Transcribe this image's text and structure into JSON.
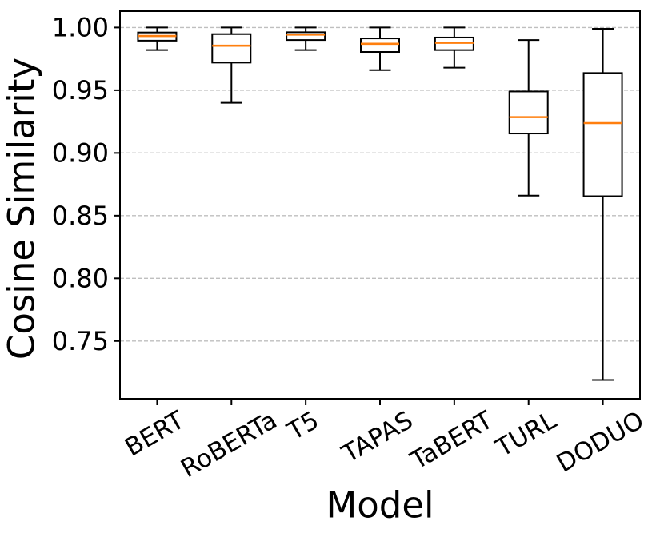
{
  "chart_data": {
    "type": "boxplot",
    "title": "",
    "xlabel": "Model",
    "ylabel": "Cosine Similarity",
    "categories": [
      "BERT",
      "RoBERTa",
      "T5",
      "TAPAS",
      "TaBERT",
      "TURL",
      "DODUO"
    ],
    "boxes": [
      {
        "label": "BERT",
        "whisker_low": 0.982,
        "q1": 0.9895,
        "median": 0.9932,
        "q3": 0.996,
        "whisker_high": 1.0
      },
      {
        "label": "RoBERTa",
        "whisker_low": 0.94,
        "q1": 0.972,
        "median": 0.9855,
        "q3": 0.9947,
        "whisker_high": 1.0
      },
      {
        "label": "T5",
        "whisker_low": 0.982,
        "q1": 0.99,
        "median": 0.9943,
        "q3": 0.9962,
        "whisker_high": 1.0
      },
      {
        "label": "TAPAS",
        "whisker_low": 0.966,
        "q1": 0.9805,
        "median": 0.987,
        "q3": 0.9913,
        "whisker_high": 1.0
      },
      {
        "label": "TaBERT",
        "whisker_low": 0.968,
        "q1": 0.982,
        "median": 0.9878,
        "q3": 0.992,
        "whisker_high": 1.0
      },
      {
        "label": "TURL",
        "whisker_low": 0.866,
        "q1": 0.9155,
        "median": 0.9285,
        "q3": 0.949,
        "whisker_high": 0.99
      },
      {
        "label": "DODUO",
        "whisker_low": 0.719,
        "q1": 0.8655,
        "median": 0.9238,
        "q3": 0.9637,
        "whisker_high": 0.999
      }
    ],
    "yticks": [
      0.75,
      0.8,
      0.85,
      0.9,
      0.95,
      1.0
    ],
    "ytick_labels": [
      "0.75",
      "0.80",
      "0.85",
      "0.90",
      "0.95",
      "1.00"
    ],
    "ylim": [
      0.704,
      1.013
    ],
    "grid": {
      "axis": "y",
      "style": "dashed",
      "on": true
    },
    "legend": "none",
    "x_tick_rotation_deg": -30,
    "colors": {
      "median": "#ff7f0e",
      "box_edge": "#000000",
      "box_fill": "#ffffff",
      "grid": "#bfbfbf",
      "text": "#000000",
      "background": "#ffffff"
    }
  }
}
